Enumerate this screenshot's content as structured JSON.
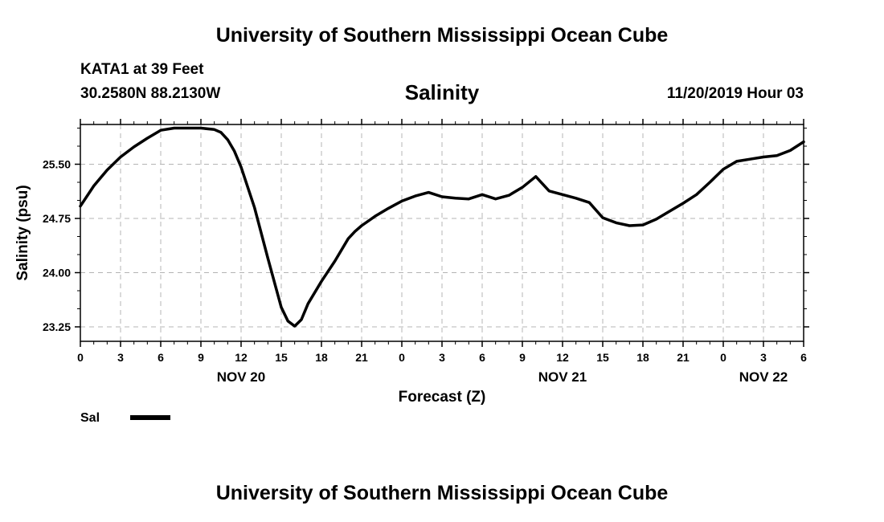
{
  "header": {
    "top_title": "University of Southern Mississippi Ocean Cube",
    "station_name": "KATA1 at 39 Feet",
    "station_coords": "30.2580N 88.2130W",
    "issue_time": "11/20/2019 Hour 03"
  },
  "footer": {
    "bottom_title": "University of Southern Mississippi Ocean Cube"
  },
  "chart_data": {
    "type": "line",
    "title": "Salinity",
    "xlabel": "Forecast (Z)",
    "ylabel": "Salinity (psu)",
    "xlim": [
      0,
      54
    ],
    "ylim": [
      23.05,
      26.05
    ],
    "grid": true,
    "x_tick_values": [
      0,
      3,
      6,
      9,
      12,
      15,
      18,
      21,
      24,
      27,
      30,
      33,
      36,
      39,
      42,
      45,
      48,
      51,
      54
    ],
    "x_tick_labels": [
      "0",
      "3",
      "6",
      "9",
      "12",
      "15",
      "18",
      "21",
      "0",
      "3",
      "6",
      "9",
      "12",
      "15",
      "18",
      "21",
      "0",
      "3",
      "6"
    ],
    "y_tick_values": [
      23.25,
      24.0,
      24.75,
      25.5
    ],
    "y_tick_labels": [
      "23.25",
      "24.00",
      "24.75",
      "25.50"
    ],
    "date_labels": [
      {
        "x": 12,
        "text": "NOV 20"
      },
      {
        "x": 36,
        "text": "NOV 21"
      },
      {
        "x": 51,
        "text": "NOV 22"
      }
    ],
    "legend": {
      "label": "Sal",
      "placement": "bottom-left"
    },
    "series": [
      {
        "name": "Sal",
        "color": "#000000",
        "x": [
          0,
          1,
          2,
          3,
          4,
          5,
          6,
          7,
          8,
          9,
          10,
          10.5,
          11,
          11.5,
          12,
          13,
          14,
          15,
          15.5,
          16,
          16.5,
          17,
          18,
          19,
          20,
          20.5,
          21,
          22,
          23,
          24,
          25,
          26,
          27,
          28,
          29,
          30,
          31,
          32,
          33,
          34,
          35,
          36,
          37,
          38,
          39,
          40,
          41,
          42,
          43,
          44,
          45,
          46,
          47,
          48,
          49,
          50,
          51,
          52,
          53,
          54
        ],
        "y": [
          24.92,
          25.2,
          25.42,
          25.6,
          25.74,
          25.86,
          25.97,
          26.0,
          26.0,
          26.0,
          25.98,
          25.94,
          25.84,
          25.68,
          25.46,
          24.9,
          24.2,
          23.52,
          23.33,
          23.26,
          23.35,
          23.57,
          23.88,
          24.16,
          24.47,
          24.57,
          24.65,
          24.78,
          24.89,
          24.99,
          25.06,
          25.11,
          25.05,
          25.03,
          25.02,
          25.08,
          25.02,
          25.07,
          25.18,
          25.33,
          25.13,
          25.08,
          25.03,
          24.97,
          24.76,
          24.69,
          24.65,
          24.66,
          24.74,
          24.85,
          24.96,
          25.08,
          25.25,
          25.43,
          25.54,
          25.57,
          25.6,
          25.62,
          25.69,
          25.81
        ]
      }
    ]
  }
}
